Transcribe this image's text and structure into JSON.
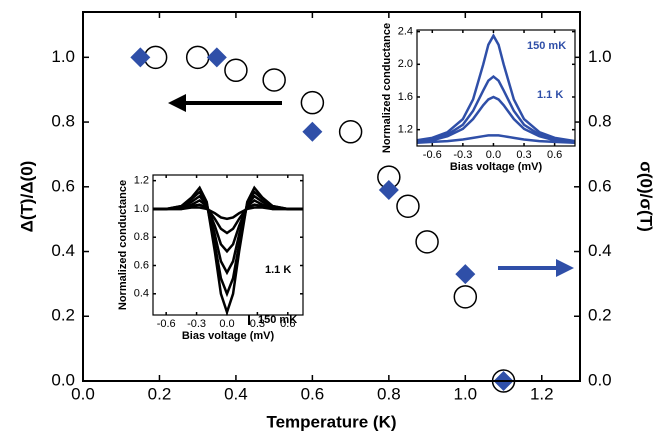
{
  "chart_data": [
    {
      "type": "scatter",
      "xlabel": "Temperature (K)",
      "ylabel": "Δ(T)/Δ(0)",
      "y2label": "σ(0)/σ(T)",
      "xlim": [
        0,
        1.3
      ],
      "ylim": [
        0,
        1.14
      ],
      "y2lim": [
        0,
        1.14
      ],
      "xticks": [
        {
          "value": 0,
          "label": "0.0"
        },
        0.2,
        0.4,
        0.6,
        0.8,
        {
          "value": 1,
          "label": "1.0"
        },
        1.2
      ],
      "yticks": [
        {
          "value": 0,
          "label": "0.0"
        },
        0.2,
        0.4,
        0.6,
        0.8,
        {
          "value": 1,
          "label": "1.0"
        }
      ],
      "y2ticks": [
        {
          "value": 0,
          "label": "0.0"
        },
        0.2,
        0.4,
        0.6,
        0.8,
        {
          "value": 1,
          "label": "1.0"
        }
      ],
      "series": [
        {
          "marker": "circle-open",
          "color": "#000000",
          "x": [
            0.19,
            0.3,
            0.4,
            0.5,
            0.6,
            0.7,
            0.8,
            0.85,
            0.9,
            1.0,
            1.1
          ],
          "values": [
            1.0,
            1.0,
            0.96,
            0.93,
            0.86,
            0.77,
            0.63,
            0.54,
            0.43,
            0.26,
            0.0
          ]
        },
        {
          "marker": "diamond",
          "color": "#2f4fa8",
          "axis": "y2",
          "x": [
            0.15,
            0.35,
            0.6,
            0.8,
            1.0,
            1.1
          ],
          "values": [
            1.0,
            1.0,
            0.77,
            0.59,
            0.33,
            0.0
          ]
        }
      ]
    },
    {
      "type": "line",
      "xlabel": "Bias voltage (mV)",
      "ylabel": "Normalized conductance",
      "xlim": [
        -0.75,
        0.8
      ],
      "ylim": [
        1.0,
        2.42
      ],
      "xticks": [
        -0.6,
        -0.3,
        {
          "value": 0,
          "label": "0.0"
        },
        0.3,
        0.6
      ],
      "yticks": [
        1.2,
        1.6,
        {
          "value": 2,
          "label": "2.0"
        },
        2.4
      ],
      "annotations": [
        "150 mK",
        "1.1 K"
      ],
      "annotation_color": "#2f4fa8",
      "x": [
        -0.75,
        -0.6,
        -0.45,
        -0.3,
        -0.2,
        -0.1,
        -0.05,
        0,
        0.05,
        0.1,
        0.2,
        0.3,
        0.45,
        0.6,
        0.8
      ],
      "series": [
        {
          "color": "#2f4fa8",
          "values": [
            1.07,
            1.1,
            1.17,
            1.33,
            1.57,
            2.0,
            2.24,
            2.35,
            2.24,
            2.0,
            1.57,
            1.33,
            1.17,
            1.1,
            1.06
          ]
        },
        {
          "color": "#2f4fa8",
          "values": [
            1.06,
            1.09,
            1.14,
            1.26,
            1.43,
            1.68,
            1.8,
            1.85,
            1.8,
            1.68,
            1.43,
            1.26,
            1.14,
            1.09,
            1.05
          ]
        },
        {
          "color": "#2f4fa8",
          "values": [
            1.05,
            1.07,
            1.12,
            1.21,
            1.33,
            1.5,
            1.57,
            1.6,
            1.57,
            1.5,
            1.33,
            1.21,
            1.12,
            1.07,
            1.04
          ]
        },
        {
          "color": "#2f4fa8",
          "values": [
            1.04,
            1.05,
            1.06,
            1.08,
            1.1,
            1.12,
            1.13,
            1.13,
            1.13,
            1.12,
            1.1,
            1.08,
            1.06,
            1.05,
            1.04
          ]
        }
      ]
    },
    {
      "type": "line",
      "xlabel": "Bias voltage (mV)",
      "ylabel": "Normalized conductance",
      "xlim": [
        -0.73,
        0.75
      ],
      "ylim": [
        0.25,
        1.24
      ],
      "xticks": [
        -0.6,
        -0.3,
        {
          "value": 0,
          "label": "0.0"
        },
        0.3,
        0.6
      ],
      "yticks": [
        0.4,
        0.6,
        0.8,
        {
          "value": 1,
          "label": "1.0"
        },
        1.2
      ],
      "annotations": [
        "1.1 K",
        "150 mK"
      ],
      "annotation_color": "#000000",
      "x": [
        -0.73,
        -0.6,
        -0.45,
        -0.35,
        -0.27,
        -0.2,
        -0.12,
        -0.06,
        0,
        0.06,
        0.12,
        0.2,
        0.27,
        0.35,
        0.45,
        0.6,
        0.75
      ],
      "series": [
        {
          "color": "#000000",
          "values": [
            1.0,
            1.0,
            1.02,
            1.08,
            1.15,
            1.05,
            0.7,
            0.4,
            0.27,
            0.4,
            0.7,
            1.05,
            1.15,
            1.08,
            1.02,
            1.0,
            1.0
          ]
        },
        {
          "color": "#000000",
          "values": [
            1.0,
            1.0,
            1.02,
            1.07,
            1.12,
            1.04,
            0.75,
            0.51,
            0.4,
            0.51,
            0.75,
            1.04,
            1.12,
            1.07,
            1.02,
            1.0,
            1.0
          ]
        },
        {
          "color": "#000000",
          "values": [
            1.0,
            1.0,
            1.01,
            1.05,
            1.09,
            1.03,
            0.82,
            0.63,
            0.55,
            0.63,
            0.82,
            1.03,
            1.09,
            1.05,
            1.01,
            1.0,
            1.0
          ]
        },
        {
          "color": "#000000",
          "values": [
            1.0,
            1.0,
            1.01,
            1.03,
            1.06,
            1.02,
            0.88,
            0.75,
            0.7,
            0.75,
            0.88,
            1.02,
            1.06,
            1.03,
            1.01,
            1.0,
            1.0
          ]
        },
        {
          "color": "#000000",
          "values": [
            1.0,
            1.0,
            1.0,
            1.02,
            1.03,
            1.01,
            0.93,
            0.86,
            0.83,
            0.86,
            0.93,
            1.01,
            1.03,
            1.02,
            1.0,
            1.0,
            1.0
          ]
        },
        {
          "color": "#000000",
          "values": [
            1.0,
            1.0,
            1.0,
            1.01,
            1.01,
            1.0,
            0.97,
            0.94,
            0.93,
            0.94,
            0.97,
            1.0,
            1.01,
            1.01,
            1.0,
            1.0,
            1.0
          ]
        }
      ]
    }
  ]
}
